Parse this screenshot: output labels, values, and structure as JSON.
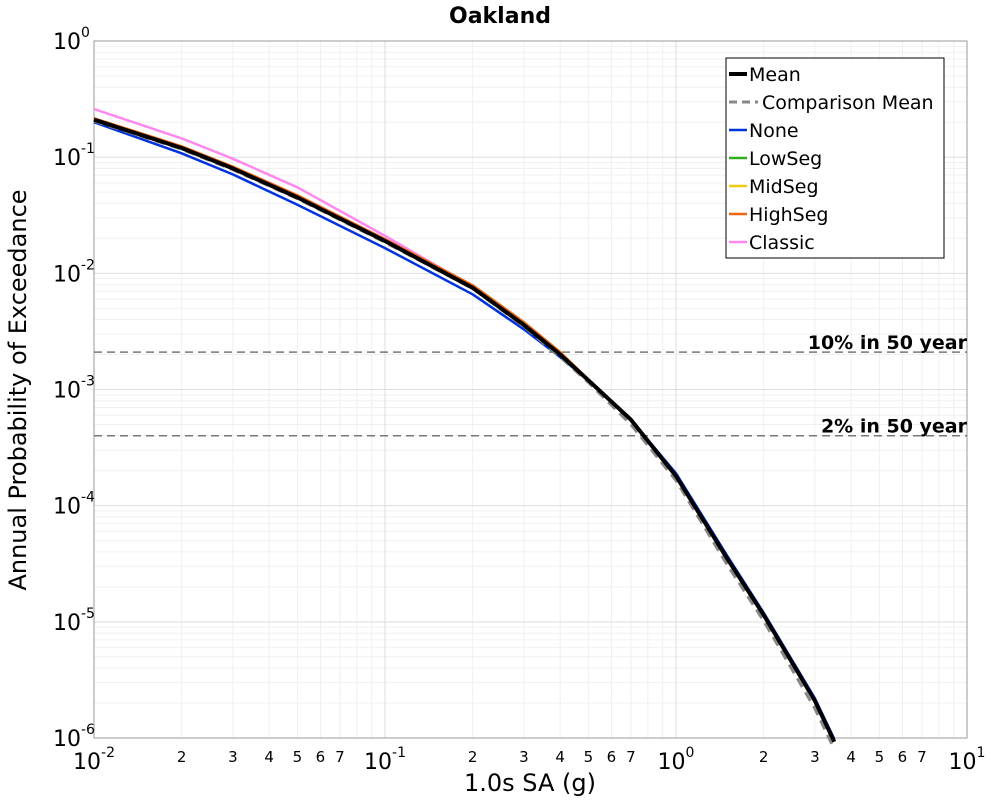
{
  "chart_data": {
    "type": "line",
    "title": "Oakland",
    "xlabel": "1.0s SA (g)",
    "ylabel": "Annual Probability of Exceedance",
    "xscale": "log",
    "yscale": "log",
    "xlim": [
      0.01,
      10
    ],
    "ylim": [
      1e-06,
      1
    ],
    "grid": true,
    "legend_position": "top-right",
    "x_major_ticks": [
      {
        "base": "10",
        "exp": "-2",
        "value": 0.01
      },
      {
        "base": "10",
        "exp": "-1",
        "value": 0.1
      },
      {
        "base": "10",
        "exp": "0",
        "value": 1
      },
      {
        "base": "10",
        "exp": "1",
        "value": 10
      }
    ],
    "x_minor_labels": [
      "2",
      "3",
      "4",
      "5",
      "6",
      "7"
    ],
    "y_major_ticks": [
      {
        "base": "10",
        "exp": "0",
        "value": 1
      },
      {
        "base": "10",
        "exp": "-1",
        "value": 0.1
      },
      {
        "base": "10",
        "exp": "-2",
        "value": 0.01
      },
      {
        "base": "10",
        "exp": "-3",
        "value": 0.001
      },
      {
        "base": "10",
        "exp": "-4",
        "value": 0.0001
      },
      {
        "base": "10",
        "exp": "-5",
        "value": 1e-05
      },
      {
        "base": "10",
        "exp": "-6",
        "value": 1e-06
      }
    ],
    "x": [
      0.01,
      0.02,
      0.03,
      0.05,
      0.1,
      0.2,
      0.3,
      0.4,
      0.5,
      0.7,
      1.0,
      1.5,
      2.0,
      3.0,
      3.5
    ],
    "series": [
      {
        "name": "Mean",
        "color": "#000000",
        "dash": "solid",
        "width": 4,
        "values": [
          0.21,
          0.12,
          0.08,
          0.045,
          0.019,
          0.0075,
          0.0036,
          0.002,
          0.0012,
          0.00055,
          0.00018,
          3.5e-05,
          1.15e-05,
          2.1e-06,
          9.3e-07
        ]
      },
      {
        "name": "Comparison Mean",
        "color": "#888888",
        "dash": "dashed",
        "width": 3,
        "values": [
          0.205,
          0.117,
          0.078,
          0.044,
          0.0185,
          0.0074,
          0.0035,
          0.0019,
          0.00115,
          0.0005,
          0.000165,
          3.1e-05,
          1.02e-05,
          1.8e-06,
          8e-07
        ]
      },
      {
        "name": "None",
        "color": "#0033dd",
        "dash": "solid",
        "width": 2.5,
        "values": [
          0.2,
          0.108,
          0.071,
          0.039,
          0.0165,
          0.0066,
          0.0033,
          0.0019,
          0.0012,
          0.00055,
          0.00019,
          3.7e-05,
          1.2e-05,
          2.2e-06,
          9.8e-07
        ]
      },
      {
        "name": "LowSeg",
        "color": "#33aa22",
        "dash": "solid",
        "width": 2.5,
        "values": [
          0.212,
          0.121,
          0.081,
          0.0455,
          0.0192,
          0.0076,
          0.0036,
          0.002,
          0.0012,
          0.00055,
          0.00018,
          3.5e-05,
          1.15e-05,
          2.1e-06,
          9.3e-07
        ]
      },
      {
        "name": "MidSeg",
        "color": "#eecc11",
        "dash": "solid",
        "width": 2.5,
        "values": [
          0.214,
          0.122,
          0.082,
          0.046,
          0.0194,
          0.0077,
          0.0037,
          0.002,
          0.0012,
          0.00055,
          0.00018,
          3.5e-05,
          1.15e-05,
          2.1e-06,
          9.3e-07
        ]
      },
      {
        "name": "HighSeg",
        "color": "#ee6611",
        "dash": "solid",
        "width": 2.5,
        "values": [
          0.216,
          0.124,
          0.083,
          0.047,
          0.0197,
          0.0079,
          0.0038,
          0.0021,
          0.00122,
          0.00056,
          0.00018,
          3.5e-05,
          1.15e-05,
          2.1e-06,
          9.3e-07
        ]
      },
      {
        "name": "Classic",
        "color": "#ff88ee",
        "dash": "solid",
        "width": 2.5,
        "values": [
          0.26,
          0.145,
          0.097,
          0.055,
          0.021,
          0.0077,
          0.0036,
          0.002,
          0.0012,
          0.00055,
          0.00018,
          3.5e-05,
          1.15e-05,
          2.1e-06,
          9.3e-07
        ]
      }
    ],
    "reference_lines": [
      {
        "label": "10% in 50 year",
        "y": 0.0021
      },
      {
        "label": "2% in 50 year",
        "y": 0.0004
      }
    ]
  }
}
